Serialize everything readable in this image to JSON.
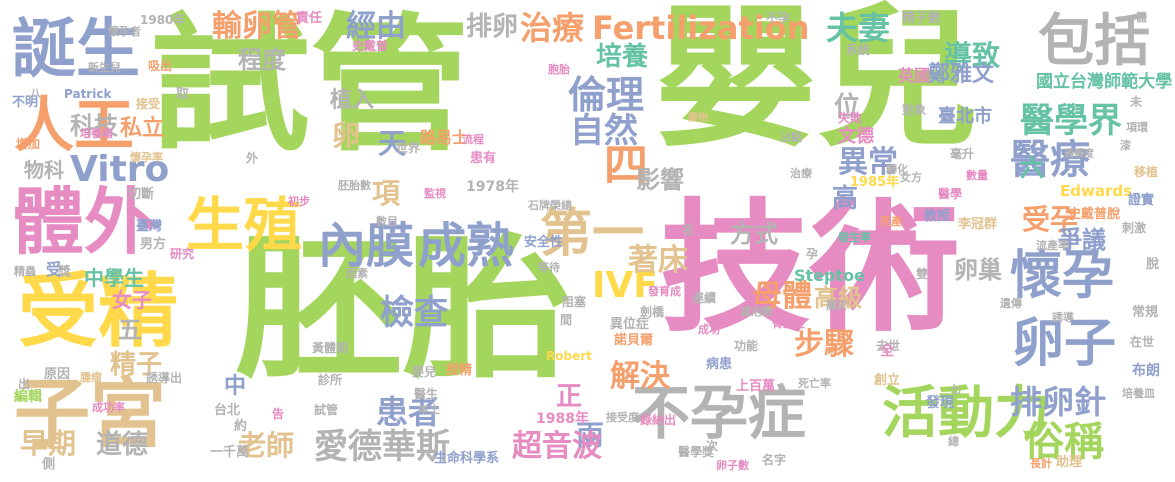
{
  "palette": {
    "green": "#a4d65e",
    "pink": "#e68cc2",
    "gray": "#b3b3b3",
    "orange": "#f5a06c",
    "blue": "#8fa0cc",
    "yellow": "#ffd94a",
    "tan": "#e2c38f",
    "teal": "#66c2a5"
  },
  "words": [
    {
      "text": "試管",
      "color": "green"
    },
    {
      "text": "嬰兒",
      "color": "green"
    },
    {
      "text": "胚胎",
      "color": "green"
    },
    {
      "text": "技術",
      "color": "pink"
    },
    {
      "text": "受精",
      "color": "yellow"
    },
    {
      "text": "子宮",
      "color": "tan"
    },
    {
      "text": "體外",
      "color": "pink"
    },
    {
      "text": "誕生",
      "color": "blue"
    },
    {
      "text": "人工",
      "color": "orange"
    },
    {
      "text": "生殖",
      "color": "yellow"
    },
    {
      "text": "包括",
      "color": "gray"
    },
    {
      "text": "不孕症",
      "color": "gray"
    },
    {
      "text": "活動力",
      "color": "green"
    },
    {
      "text": "懷孕",
      "color": "blue"
    },
    {
      "text": "卵子",
      "color": "blue"
    },
    {
      "text": "內膜",
      "color": "blue"
    },
    {
      "text": "成熟",
      "color": "blue"
    },
    {
      "text": "第一",
      "color": "tan"
    },
    {
      "text": "治療",
      "color": "orange"
    },
    {
      "text": "Fertilization",
      "color": "orange"
    },
    {
      "text": "夫妻",
      "color": "teal"
    },
    {
      "text": "倫理",
      "color": "blue"
    },
    {
      "text": "輸卵管",
      "color": "orange"
    },
    {
      "text": "經由",
      "color": "blue"
    },
    {
      "text": "排卵",
      "color": "gray"
    },
    {
      "text": "培養",
      "color": "teal"
    },
    {
      "text": "導致",
      "color": "teal"
    },
    {
      "text": "Vitro",
      "color": "blue"
    },
    {
      "text": "科技",
      "color": "gray"
    },
    {
      "text": "自然",
      "color": "blue"
    },
    {
      "text": "醫學界",
      "color": "teal"
    },
    {
      "text": "醫療",
      "color": "blue"
    },
    {
      "text": "異常",
      "color": "blue"
    },
    {
      "text": "四",
      "color": "orange"
    },
    {
      "text": "影響",
      "color": "gray"
    },
    {
      "text": "檢查",
      "color": "blue"
    },
    {
      "text": "IVF",
      "color": "yellow"
    },
    {
      "text": "母體",
      "color": "orange"
    },
    {
      "text": "受孕",
      "color": "orange"
    },
    {
      "text": "爭議",
      "color": "blue"
    },
    {
      "text": "卵巢",
      "color": "gray"
    },
    {
      "text": "排卵針",
      "color": "blue"
    },
    {
      "text": "俗稱",
      "color": "green"
    },
    {
      "text": "步驟",
      "color": "orange"
    },
    {
      "text": "患者",
      "color": "blue"
    },
    {
      "text": "兩",
      "color": "blue"
    },
    {
      "text": "解決",
      "color": "orange"
    },
    {
      "text": "著床",
      "color": "tan"
    },
    {
      "text": "方式",
      "color": "gray"
    },
    {
      "text": "愛德華斯",
      "color": "gray"
    },
    {
      "text": "超音波",
      "color": "pink"
    },
    {
      "text": "道德",
      "color": "gray"
    },
    {
      "text": "早期",
      "color": "tan"
    },
    {
      "text": "老師",
      "color": "tan"
    },
    {
      "text": "精子",
      "color": "tan"
    },
    {
      "text": "五",
      "color": "gray"
    },
    {
      "text": "程度",
      "color": "gray"
    },
    {
      "text": "植入",
      "color": "gray"
    },
    {
      "text": "卵",
      "color": "tan"
    },
    {
      "text": "天",
      "color": "blue"
    },
    {
      "text": "項",
      "color": "tan"
    },
    {
      "text": "位",
      "color": "gray"
    },
    {
      "text": "高",
      "color": "blue"
    },
    {
      "text": "高級",
      "color": "tan"
    },
    {
      "text": "中學生",
      "color": "teal"
    },
    {
      "text": "女子",
      "color": "pink"
    },
    {
      "text": "私立",
      "color": "orange"
    },
    {
      "text": "物科",
      "color": "gray"
    },
    {
      "text": "鄭雅文",
      "color": "blue"
    },
    {
      "text": "臺北市",
      "color": "blue"
    },
    {
      "text": "國立台灣師範大學",
      "color": "teal"
    },
    {
      "text": "文德",
      "color": "pink"
    },
    {
      "text": "英國",
      "color": "pink"
    },
    {
      "text": "六",
      "color": "teal"
    },
    {
      "text": "中",
      "color": "blue"
    },
    {
      "text": "正",
      "color": "pink"
    },
    {
      "text": "路易士",
      "color": "orange"
    },
    {
      "text": "Steptoe",
      "color": "teal"
    },
    {
      "text": "Edwards",
      "color": "yellow"
    },
    {
      "text": "1978年",
      "color": "gray"
    },
    {
      "text": "1985年",
      "color": "yellow"
    },
    {
      "text": "1988年",
      "color": "pink"
    },
    {
      "text": "1980年",
      "color": "gray"
    },
    {
      "text": "Patrick",
      "color": "blue"
    },
    {
      "text": "Robert",
      "color": "yellow"
    },
    {
      "text": "史戴普",
      "color": "pink"
    },
    {
      "text": "史戴普脫",
      "color": "orange"
    },
    {
      "text": "責任",
      "color": "pink"
    },
    {
      "text": "精子數",
      "color": "gray"
    },
    {
      "text": "不孕",
      "color": "gray"
    },
    {
      "text": "懷孕者",
      "color": "gray"
    },
    {
      "text": "新生兒",
      "color": "gray"
    },
    {
      "text": "吸出",
      "color": "orange"
    },
    {
      "text": "不明",
      "color": "blue"
    },
    {
      "text": "接受",
      "color": "tan"
    },
    {
      "text": "培養箱",
      "color": "pink"
    },
    {
      "text": "增加",
      "color": "orange"
    },
    {
      "text": "懷孕率",
      "color": "tan"
    },
    {
      "text": "切斷",
      "color": "gray"
    },
    {
      "text": "臺灣",
      "color": "blue"
    },
    {
      "text": "男方",
      "color": "gray"
    },
    {
      "text": "研究",
      "color": "pink"
    },
    {
      "text": "精蟲",
      "color": "gray"
    },
    {
      "text": "受",
      "color": "blue"
    },
    {
      "text": "獎",
      "color": "gray"
    },
    {
      "text": "原因",
      "color": "gray"
    },
    {
      "text": "腫瘤",
      "color": "tan"
    },
    {
      "text": "誘導出",
      "color": "gray"
    },
    {
      "text": "編輯",
      "color": "green"
    },
    {
      "text": "成功率",
      "color": "pink"
    },
    {
      "text": "台北",
      "color": "gray"
    },
    {
      "text": "約",
      "color": "gray"
    },
    {
      "text": "側",
      "color": "gray"
    },
    {
      "text": "一千萬",
      "color": "gray"
    },
    {
      "text": "生命科學系",
      "color": "blue"
    },
    {
      "text": "醫學獎",
      "color": "gray"
    },
    {
      "text": "卵子數",
      "color": "pink"
    },
    {
      "text": "名字",
      "color": "gray"
    },
    {
      "text": "助理",
      "color": "tan"
    },
    {
      "text": "長計",
      "color": "orange"
    },
    {
      "text": "布朗",
      "color": "blue"
    },
    {
      "text": "在世",
      "color": "gray"
    },
    {
      "text": "培養皿",
      "color": "gray"
    },
    {
      "text": "常規",
      "color": "gray"
    },
    {
      "text": "脫",
      "color": "gray"
    },
    {
      "text": "證實",
      "color": "blue"
    },
    {
      "text": "刺激",
      "color": "gray"
    },
    {
      "text": "移植",
      "color": "tan"
    },
    {
      "text": "毫升",
      "color": "gray"
    },
    {
      "text": "未",
      "color": "gray"
    },
    {
      "text": "上百萬",
      "color": "pink"
    },
    {
      "text": "死亡率",
      "color": "gray"
    },
    {
      "text": "創立",
      "color": "tan"
    },
    {
      "text": "發現",
      "color": "blue"
    },
    {
      "text": "李冠群",
      "color": "tan"
    },
    {
      "text": "教授",
      "color": "blue"
    },
    {
      "text": "醫學",
      "color": "pink"
    },
    {
      "text": "女方",
      "color": "gray"
    },
    {
      "text": "失敗",
      "color": "pink"
    },
    {
      "text": "對象",
      "color": "gray"
    },
    {
      "text": "系統",
      "color": "gray"
    },
    {
      "text": "胚胎數",
      "color": "gray"
    },
    {
      "text": "世界",
      "color": "gray"
    },
    {
      "text": "患有",
      "color": "pink"
    },
    {
      "text": "流程",
      "color": "pink"
    },
    {
      "text": "藥物",
      "color": "tan"
    },
    {
      "text": "沾黏",
      "color": "gray"
    },
    {
      "text": "胞胎",
      "color": "pink"
    },
    {
      "text": "石牌榮總",
      "color": "gray"
    },
    {
      "text": "安全性",
      "color": "blue"
    },
    {
      "text": "等待",
      "color": "gray"
    },
    {
      "text": "阻塞",
      "color": "gray"
    },
    {
      "text": "連續",
      "color": "gray"
    },
    {
      "text": "異位症",
      "color": "gray"
    },
    {
      "text": "諾貝爾",
      "color": "orange"
    },
    {
      "text": "劍橋",
      "color": "gray"
    },
    {
      "text": "病患",
      "color": "blue"
    },
    {
      "text": "功能",
      "color": "gray"
    },
    {
      "text": "成功",
      "color": "pink"
    },
    {
      "text": "濾泡數",
      "color": "gray"
    },
    {
      "text": "骨盆腔",
      "color": "pink"
    },
    {
      "text": "去世",
      "color": "gray"
    },
    {
      "text": "發育成",
      "color": "pink"
    },
    {
      "text": "授精",
      "color": "orange"
    },
    {
      "text": "黃體期",
      "color": "gray"
    },
    {
      "text": "診所",
      "color": "gray"
    },
    {
      "text": "婴兒",
      "color": "gray"
    },
    {
      "text": "醫生",
      "color": "gray"
    },
    {
      "text": "本土",
      "color": "gray"
    },
    {
      "text": "試管",
      "color": "gray"
    },
    {
      "text": "告",
      "color": "pink"
    },
    {
      "text": "接受度",
      "color": "gray"
    },
    {
      "text": "錄納出",
      "color": "pink"
    },
    {
      "text": "次",
      "color": "gray"
    },
    {
      "text": "初步",
      "color": "pink"
    },
    {
      "text": "數目",
      "color": "gray"
    },
    {
      "text": "因素",
      "color": "gray"
    },
    {
      "text": "間",
      "color": "gray"
    },
    {
      "text": "名",
      "color": "gray"
    },
    {
      "text": "流產率",
      "color": "gray"
    },
    {
      "text": "數量",
      "color": "pink"
    },
    {
      "text": "遺傳",
      "color": "gray"
    },
    {
      "text": "通暢度",
      "color": "gray"
    },
    {
      "text": "項環",
      "color": "gray"
    },
    {
      "text": "誘導",
      "color": "gray"
    },
    {
      "text": "監視",
      "color": "pink"
    },
    {
      "text": "取",
      "color": "gray"
    },
    {
      "text": "出",
      "color": "gray"
    },
    {
      "text": "外",
      "color": "gray"
    },
    {
      "text": "八",
      "color": "gray"
    },
    {
      "text": "七",
      "color": "gray"
    },
    {
      "text": "總",
      "color": "gray"
    },
    {
      "text": "全",
      "color": "pink"
    },
    {
      "text": "孕",
      "color": "gray"
    },
    {
      "text": "雙",
      "color": "gray"
    },
    {
      "text": "屬於",
      "color": "gray"
    },
    {
      "text": "漆",
      "color": "gray"
    },
    {
      "text": "體",
      "color": "gray"
    },
    {
      "text": "死產",
      "color": "orange"
    },
    {
      "text": "發生率",
      "color": "teal"
    },
    {
      "text": "轉化",
      "color": "gray"
    },
    {
      "text": "治療",
      "color": "gray"
    }
  ]
}
